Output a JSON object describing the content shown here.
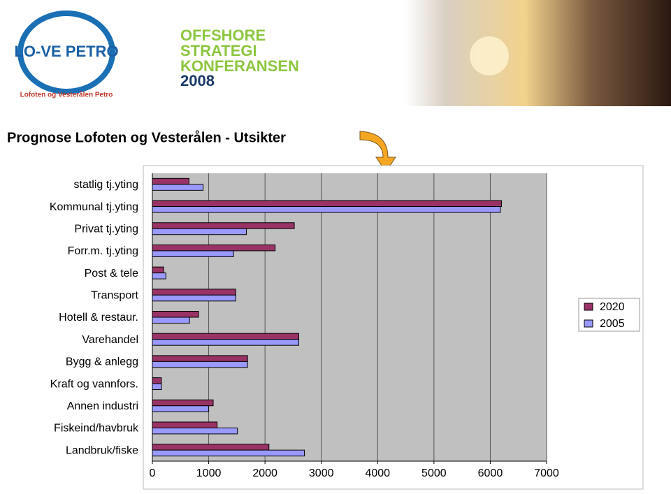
{
  "header": {
    "logo_text": "LO-VE PETRO",
    "logo_subtitle": "Lofoten og Vesterålen Petro",
    "conference_lines": [
      "OFFSHORE",
      "STRATEGI",
      "KONFERANSEN"
    ],
    "conference_year": "2008"
  },
  "chart_data": {
    "type": "hbar",
    "title": "Prognose Lofoten og Vesterålen - Utsikter",
    "categories": [
      "statlig tj.yting",
      "Kommunal tj.yting",
      "Privat tj.yting",
      "Forr.m. tj.yting",
      "Post & tele",
      "Transport",
      "Hotell & restaur.",
      "Varehandel",
      "Bygg & anlegg",
      "Kraft og vannfors.",
      "Annen industri",
      "Fiskeind/havbruk",
      "Landbruk/fiske"
    ],
    "series": [
      {
        "name": "2020",
        "color": "#993366",
        "values": [
          650,
          6200,
          2520,
          2180,
          200,
          1480,
          820,
          2600,
          1690,
          160,
          1080,
          1150,
          2070
        ]
      },
      {
        "name": "2005",
        "color": "#9999ff",
        "values": [
          900,
          6180,
          1670,
          1440,
          240,
          1480,
          660,
          2600,
          1690,
          160,
          1000,
          1510,
          2700
        ]
      }
    ],
    "xlim": [
      0,
      7000
    ],
    "xticks": [
      0,
      1000,
      2000,
      3000,
      4000,
      5000,
      6000,
      7000
    ],
    "grid": true,
    "legend": "right"
  }
}
